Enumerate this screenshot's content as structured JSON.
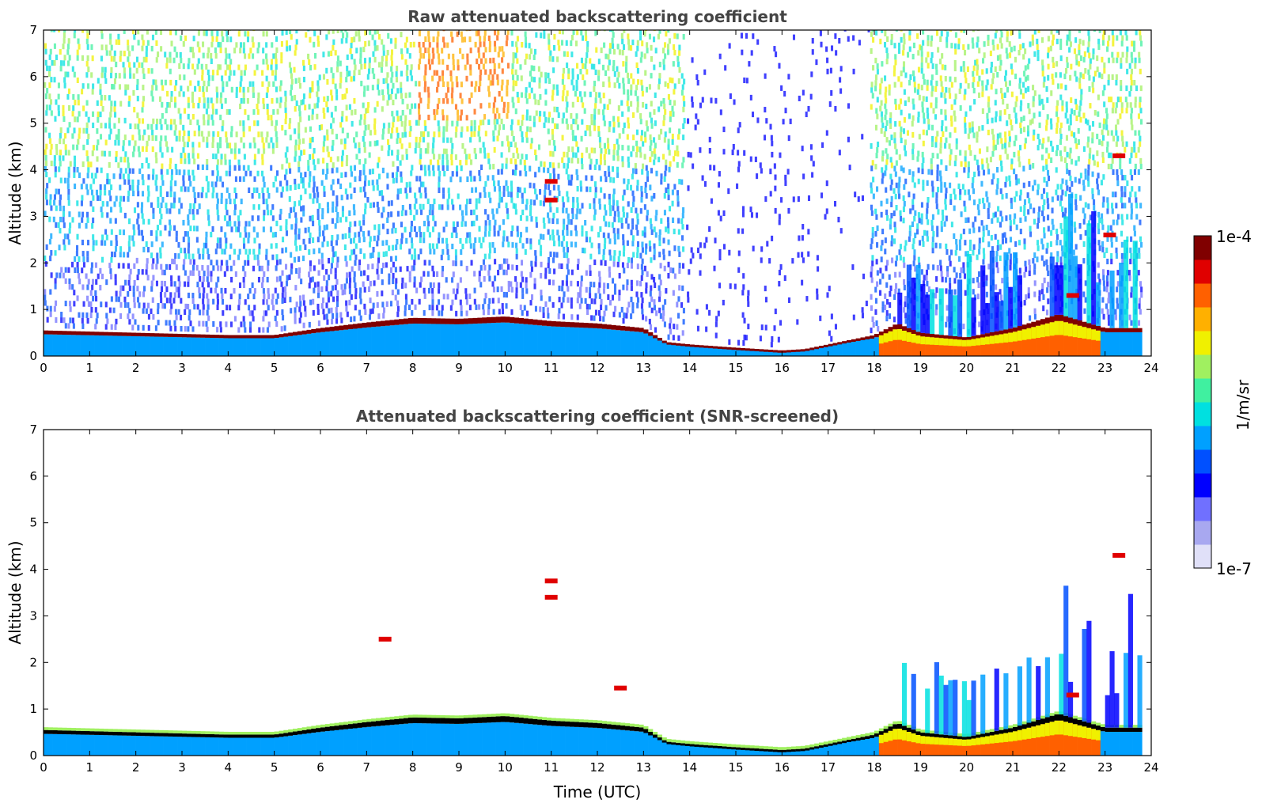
{
  "chart_data": [
    {
      "type": "heatmap",
      "title": "Raw attenuated backscattering coefficient",
      "xlabel": "",
      "ylabel": "Altitude (km)",
      "xlim": [
        0,
        24
      ],
      "ylim": [
        0,
        7
      ],
      "xticks": [
        "0",
        "1",
        "2",
        "3",
        "4",
        "5",
        "6",
        "7",
        "8",
        "9",
        "10",
        "11",
        "12",
        "13",
        "14",
        "15",
        "16",
        "17",
        "18",
        "19",
        "20",
        "21",
        "22",
        "23",
        "24"
      ],
      "yticks": [
        "0",
        "1",
        "2",
        "3",
        "4",
        "5",
        "6",
        "7"
      ],
      "boundary_layer_top_km": [
        [
          0,
          0.55
        ],
        [
          2,
          0.5
        ],
        [
          4,
          0.45
        ],
        [
          5,
          0.45
        ],
        [
          6,
          0.6
        ],
        [
          7,
          0.72
        ],
        [
          8,
          0.82
        ],
        [
          9,
          0.8
        ],
        [
          10,
          0.85
        ],
        [
          11,
          0.75
        ],
        [
          12,
          0.7
        ],
        [
          13,
          0.6
        ],
        [
          13.5,
          0.3
        ],
        [
          14,
          0.25
        ],
        [
          15,
          0.18
        ],
        [
          16,
          0.12
        ],
        [
          16.5,
          0.15
        ],
        [
          17,
          0.25
        ],
        [
          18,
          0.45
        ],
        [
          18.5,
          0.7
        ],
        [
          19,
          0.5
        ],
        [
          20,
          0.4
        ],
        [
          21,
          0.6
        ],
        [
          22,
          0.9
        ],
        [
          23,
          0.6
        ],
        [
          23.8,
          0.6
        ]
      ],
      "cloud_features": [
        {
          "time_utc": 11.0,
          "altitude_km": 3.75
        },
        {
          "time_utc": 11.0,
          "altitude_km": 3.35
        },
        {
          "time_utc": 22.3,
          "altitude_km": 1.3
        },
        {
          "time_utc": 23.3,
          "altitude_km": 4.3
        },
        {
          "time_utc": 23.1,
          "altitude_km": 2.6
        }
      ]
    },
    {
      "type": "heatmap",
      "title": "Attenuated backscattering coefficient (SNR-screened)",
      "xlabel": "Time (UTC)",
      "ylabel": "Altitude (km)",
      "xlim": [
        0,
        24
      ],
      "ylim": [
        0,
        7
      ],
      "xticks": [
        "0",
        "1",
        "2",
        "3",
        "4",
        "5",
        "6",
        "7",
        "8",
        "9",
        "10",
        "11",
        "12",
        "13",
        "14",
        "15",
        "16",
        "17",
        "18",
        "19",
        "20",
        "21",
        "22",
        "23",
        "24"
      ],
      "yticks": [
        "0",
        "1",
        "2",
        "3",
        "4",
        "5",
        "6",
        "7"
      ],
      "boundary_layer_top_km": [
        [
          0,
          0.55
        ],
        [
          2,
          0.5
        ],
        [
          4,
          0.45
        ],
        [
          5,
          0.45
        ],
        [
          6,
          0.6
        ],
        [
          7,
          0.72
        ],
        [
          8,
          0.82
        ],
        [
          9,
          0.8
        ],
        [
          10,
          0.85
        ],
        [
          11,
          0.75
        ],
        [
          12,
          0.7
        ],
        [
          13,
          0.6
        ],
        [
          13.5,
          0.3
        ],
        [
          14,
          0.25
        ],
        [
          15,
          0.18
        ],
        [
          16,
          0.12
        ],
        [
          16.5,
          0.15
        ],
        [
          17,
          0.25
        ],
        [
          18,
          0.45
        ],
        [
          18.5,
          0.7
        ],
        [
          19,
          0.5
        ],
        [
          20,
          0.4
        ],
        [
          21,
          0.6
        ],
        [
          22,
          0.9
        ],
        [
          23,
          0.6
        ],
        [
          23.8,
          0.6
        ]
      ],
      "cloud_features": [
        {
          "time_utc": 11.0,
          "altitude_km": 3.75
        },
        {
          "time_utc": 11.0,
          "altitude_km": 3.4
        },
        {
          "time_utc": 12.5,
          "altitude_km": 1.45
        },
        {
          "time_utc": 7.4,
          "altitude_km": 2.5
        },
        {
          "time_utc": 22.3,
          "altitude_km": 1.3
        },
        {
          "time_utc": 23.3,
          "altitude_km": 4.3
        }
      ]
    }
  ],
  "colorbar": {
    "label": "1/m/sr",
    "max_label": "1e-4",
    "min_label": "1e-7",
    "colors": [
      "#e0e0f8",
      "#a8a8f0",
      "#7070ff",
      "#0000ff",
      "#0050ff",
      "#00a0ff",
      "#00e0e0",
      "#40f0a0",
      "#a0f060",
      "#f0f000",
      "#ffb000",
      "#ff6000",
      "#e00000",
      "#800000"
    ]
  }
}
